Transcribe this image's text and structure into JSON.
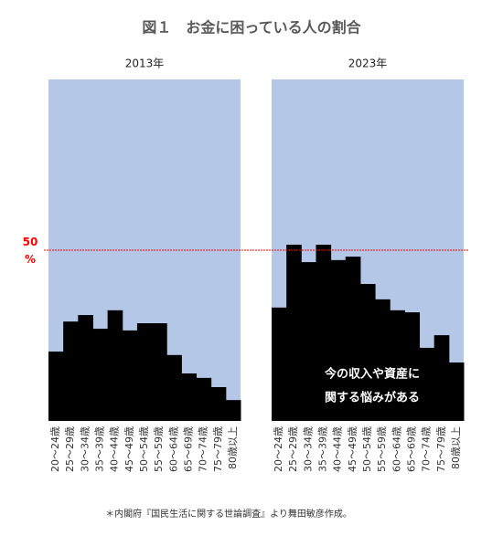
{
  "title": "図１　お金に困っている人の割合",
  "note": "＊内閣府『国民生活に関する世論調査』より舞田敏彦作成。",
  "reference_line": {
    "value": 50,
    "label": "50\n%",
    "color": "#ff0000"
  },
  "chart_data": [
    {
      "type": "bar",
      "subtitle": "2013年",
      "color": "#000000",
      "background": "#b4c7e7",
      "categories": [
        "20～24歳",
        "25～29歳",
        "30～34歳",
        "35～39歳",
        "40～44歳",
        "45～49歳",
        "50～54歳",
        "55～59歳",
        "60～64歳",
        "65～69歳",
        "70～74歳",
        "75～79歳",
        "80歳以上"
      ],
      "values": [
        20.3,
        29.1,
        31.0,
        27.0,
        32.4,
        26.5,
        28.6,
        28.6,
        19.3,
        13.9,
        12.6,
        9.9,
        6.1
      ],
      "ylim": [
        0,
        100
      ]
    },
    {
      "type": "bar",
      "subtitle": "2023年",
      "color": "#000000",
      "background": "#b4c7e7",
      "categories": [
        "20～24歳",
        "25～29歳",
        "30～34歳",
        "35～39歳",
        "40～44歳",
        "45～49歳",
        "50～54歳",
        "55～59歳",
        "60～64歳",
        "65～69歳",
        "70～74歳",
        "75～79歳",
        "80歳以上"
      ],
      "values": [
        33.2,
        51.6,
        46.5,
        51.6,
        47.1,
        48.1,
        40.1,
        35.6,
        32.4,
        31.8,
        21.4,
        25.1,
        17.1
      ],
      "ylim": [
        0,
        100
      ],
      "annotation": [
        "今の収入や資産に",
        "関する悩みがある"
      ]
    }
  ]
}
